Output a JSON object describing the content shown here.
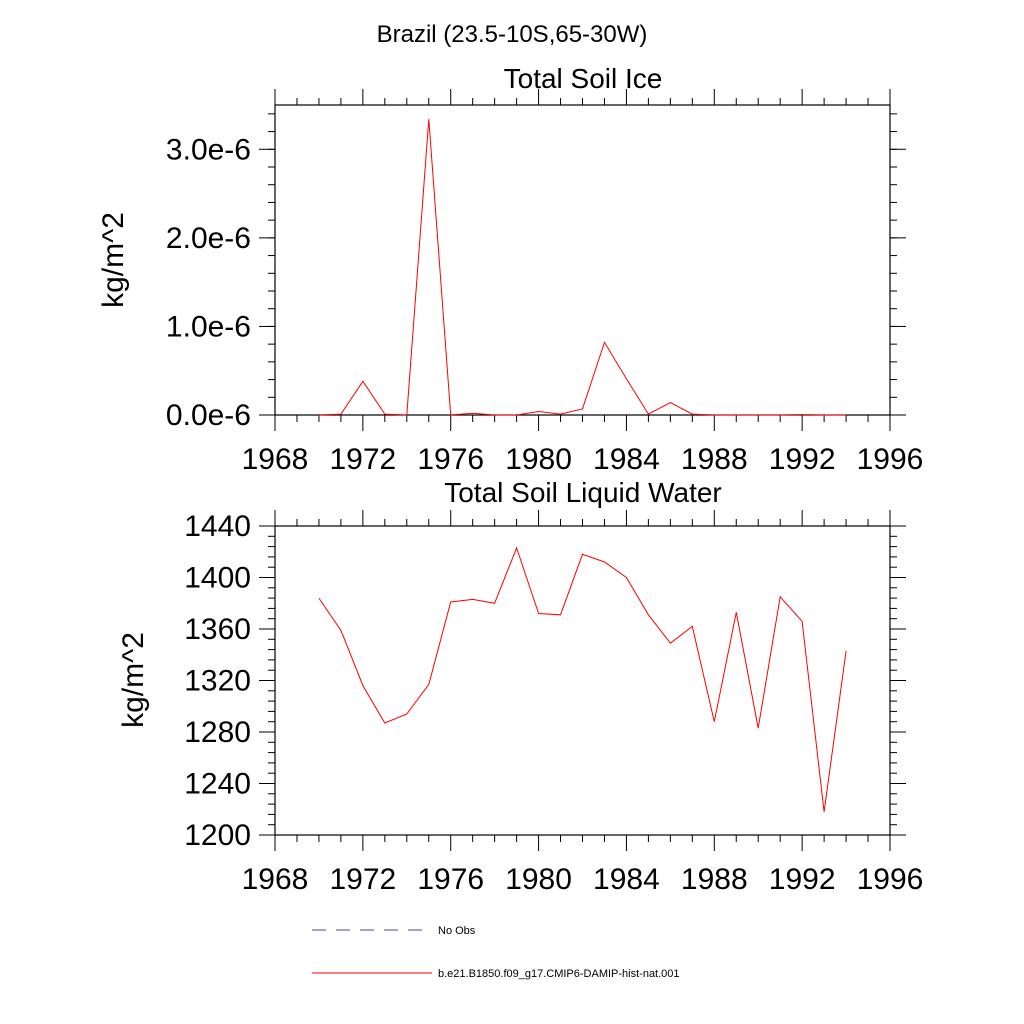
{
  "figure_title": "Brazil (23.5-10S,65-30W)",
  "chart_data": [
    {
      "type": "line",
      "title": "Total Soil Ice",
      "xlabel": "",
      "ylabel": "kg/m^2",
      "xlim": [
        1968,
        1996
      ],
      "ylim": [
        0,
        3.5e-06
      ],
      "xticks": [
        1968,
        1972,
        1976,
        1980,
        1984,
        1988,
        1992,
        1996
      ],
      "xtick_labels": [
        "1968",
        "1972",
        "1976",
        "1980",
        "1984",
        "1988",
        "1992",
        "1996"
      ],
      "yticks": [
        0,
        1e-06,
        2e-06,
        3e-06
      ],
      "ytick_labels": [
        "0.0e-6",
        "1.0e-6",
        "2.0e-6",
        "3.0e-6"
      ],
      "grid": false,
      "series": [
        {
          "name": "b.e21.B1850.f09_g17.CMIP6-DAMIP-hist-nat.001",
          "color": "#ff0000",
          "x": [
            1970,
            1971,
            1972,
            1973,
            1974,
            1975,
            1976,
            1977,
            1978,
            1979,
            1980,
            1981,
            1982,
            1983,
            1984,
            1985,
            1986,
            1987,
            1988,
            1989,
            1990,
            1991,
            1992,
            1993,
            1994
          ],
          "y": [
            0,
            1e-08,
            3.8e-07,
            1e-08,
            0,
            3.34e-06,
            0,
            2e-08,
            0,
            0,
            4e-08,
            1e-08,
            7e-08,
            8.2e-07,
            4.1e-07,
            1e-08,
            1.4e-07,
            1e-08,
            0,
            0,
            0,
            0,
            5e-09,
            0,
            0
          ]
        }
      ]
    },
    {
      "type": "line",
      "title": "Total Soil Liquid Water",
      "xlabel": "",
      "ylabel": "kg/m^2",
      "xlim": [
        1968,
        1996
      ],
      "ylim": [
        1200,
        1440
      ],
      "xticks": [
        1968,
        1972,
        1976,
        1980,
        1984,
        1988,
        1992,
        1996
      ],
      "xtick_labels": [
        "1968",
        "1972",
        "1976",
        "1980",
        "1984",
        "1988",
        "1992",
        "1996"
      ],
      "yticks": [
        1200,
        1240,
        1280,
        1320,
        1360,
        1400,
        1440
      ],
      "ytick_labels": [
        "1200",
        "1240",
        "1280",
        "1320",
        "1360",
        "1400",
        "1440"
      ],
      "grid": false,
      "series": [
        {
          "name": "b.e21.B1850.f09_g17.CMIP6-DAMIP-hist-nat.001",
          "color": "#ff0000",
          "x": [
            1970,
            1971,
            1972,
            1973,
            1974,
            1975,
            1976,
            1977,
            1978,
            1979,
            1980,
            1981,
            1982,
            1983,
            1984,
            1985,
            1986,
            1987,
            1988,
            1989,
            1990,
            1991,
            1992,
            1993,
            1994
          ],
          "y": [
            1384,
            1359,
            1316,
            1287,
            1294,
            1317,
            1381,
            1383,
            1380,
            1423,
            1372,
            1371,
            1418,
            1412,
            1400,
            1371,
            1349,
            1362,
            1288,
            1373,
            1283,
            1385,
            1366,
            1218,
            1343
          ]
        }
      ]
    }
  ],
  "legend": {
    "entries": [
      {
        "label": "No Obs",
        "style": "dashed",
        "color": "#444b8a"
      },
      {
        "label": "b.e21.B1850.f09_g17.CMIP6-DAMIP-hist-nat.001",
        "style": "solid",
        "color": "#ff0000"
      }
    ]
  }
}
